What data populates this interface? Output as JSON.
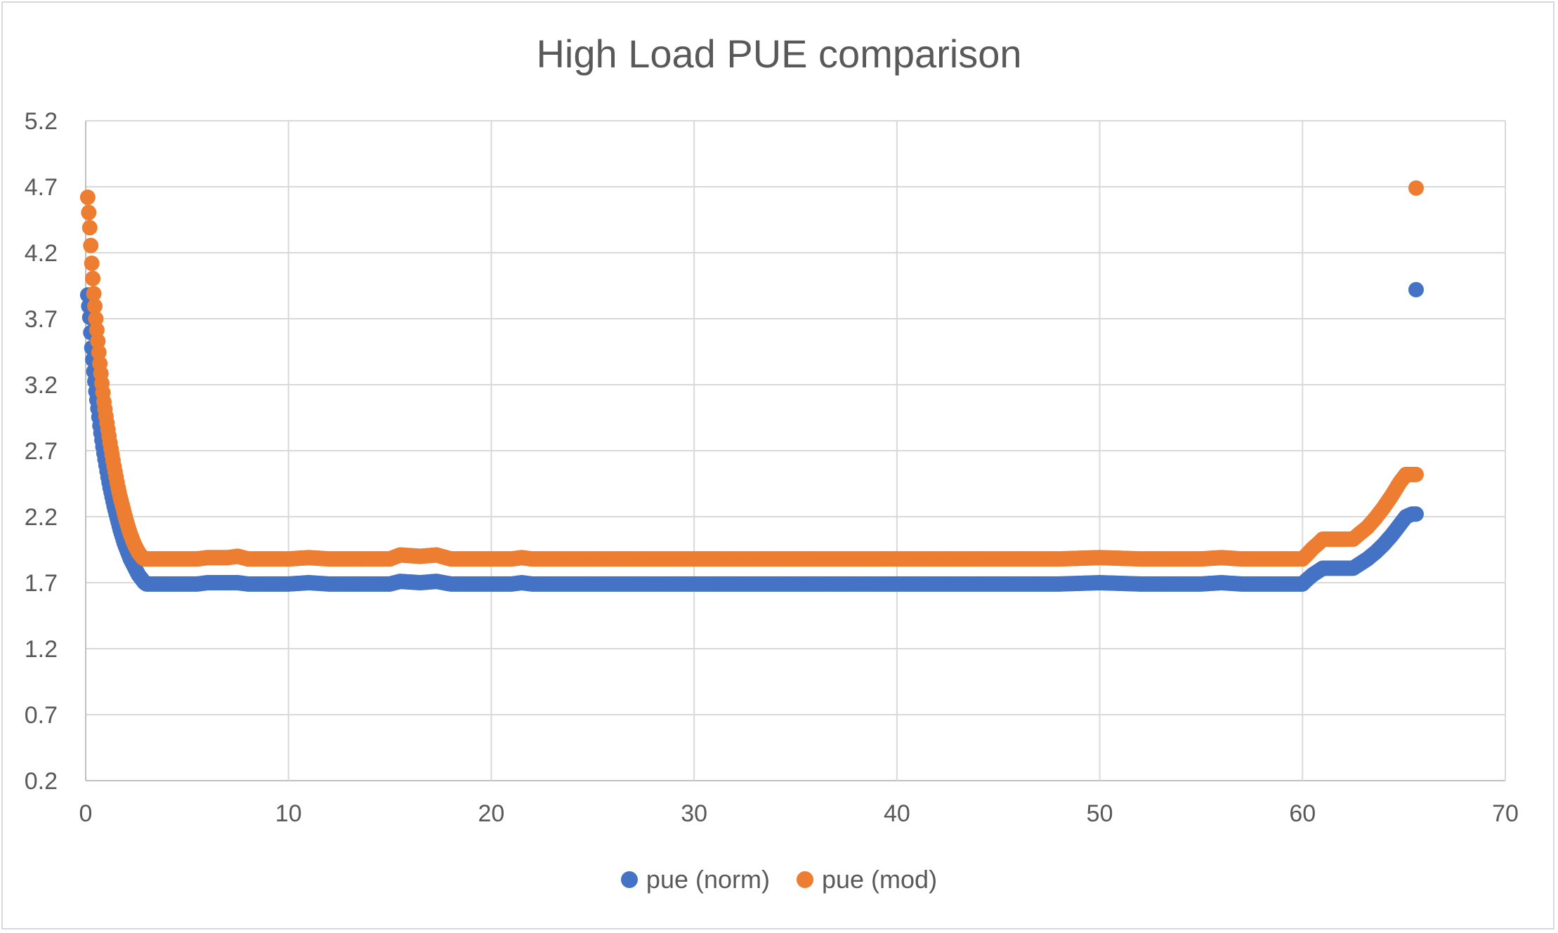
{
  "chart_data": {
    "type": "scatter",
    "title": "High Load PUE comparison",
    "xlabel": "",
    "ylabel": "",
    "xlim": [
      0,
      70
    ],
    "ylim": [
      0.2,
      5.2
    ],
    "x_ticks": [
      "0",
      "10",
      "20",
      "30",
      "40",
      "50",
      "60",
      "70"
    ],
    "y_ticks": [
      "0.2",
      "0.7",
      "1.2",
      "1.7",
      "2.2",
      "2.7",
      "3.2",
      "3.7",
      "4.2",
      "4.7",
      "5.2"
    ],
    "grid": true,
    "legend_position": "bottom",
    "series": [
      {
        "name": "pue (norm)",
        "color": "#4472c4",
        "points": [
          [
            0.1,
            3.88
          ],
          [
            0.2,
            3.71
          ],
          [
            0.3,
            3.48
          ],
          [
            0.4,
            3.3
          ],
          [
            0.5,
            3.15
          ],
          [
            0.6,
            3.02
          ],
          [
            0.7,
            2.89
          ],
          [
            0.8,
            2.78
          ],
          [
            0.9,
            2.68
          ],
          [
            1.0,
            2.59
          ],
          [
            1.1,
            2.5
          ],
          [
            1.2,
            2.42
          ],
          [
            1.3,
            2.35
          ],
          [
            1.4,
            2.28
          ],
          [
            1.5,
            2.22
          ],
          [
            1.6,
            2.16
          ],
          [
            1.7,
            2.1
          ],
          [
            1.8,
            2.05
          ],
          [
            1.9,
            2.0
          ],
          [
            2.0,
            1.96
          ],
          [
            2.1,
            1.92
          ],
          [
            2.2,
            1.88
          ],
          [
            2.3,
            1.85
          ],
          [
            2.4,
            1.82
          ],
          [
            2.5,
            1.79
          ],
          [
            2.6,
            1.76
          ],
          [
            2.7,
            1.74
          ],
          [
            2.8,
            1.72
          ],
          [
            2.9,
            1.7
          ],
          [
            3.0,
            1.69
          ],
          [
            3.5,
            1.69
          ],
          [
            4.0,
            1.69
          ],
          [
            5.0,
            1.69
          ],
          [
            5.5,
            1.69
          ],
          [
            6.0,
            1.7
          ],
          [
            7.0,
            1.7
          ],
          [
            7.5,
            1.7
          ],
          [
            8.0,
            1.69
          ],
          [
            9.0,
            1.69
          ],
          [
            10.0,
            1.69
          ],
          [
            11.0,
            1.7
          ],
          [
            12.0,
            1.69
          ],
          [
            13.0,
            1.69
          ],
          [
            14.0,
            1.69
          ],
          [
            15.0,
            1.69
          ],
          [
            15.5,
            1.71
          ],
          [
            16.5,
            1.7
          ],
          [
            17.3,
            1.71
          ],
          [
            18.0,
            1.69
          ],
          [
            19.0,
            1.69
          ],
          [
            20.0,
            1.69
          ],
          [
            21.0,
            1.69
          ],
          [
            21.5,
            1.7
          ],
          [
            22.0,
            1.69
          ],
          [
            25.0,
            1.69
          ],
          [
            28.0,
            1.69
          ],
          [
            30.0,
            1.69
          ],
          [
            33.0,
            1.69
          ],
          [
            36.0,
            1.69
          ],
          [
            40.0,
            1.69
          ],
          [
            43.0,
            1.69
          ],
          [
            45.0,
            1.69
          ],
          [
            48.0,
            1.69
          ],
          [
            50.0,
            1.7
          ],
          [
            52.0,
            1.69
          ],
          [
            55.0,
            1.69
          ],
          [
            56.0,
            1.7
          ],
          [
            57.0,
            1.69
          ],
          [
            59.0,
            1.69
          ],
          [
            60.0,
            1.69
          ],
          [
            60.2,
            1.72
          ],
          [
            60.5,
            1.76
          ],
          [
            60.8,
            1.79
          ],
          [
            61.0,
            1.81
          ],
          [
            62.0,
            1.81
          ],
          [
            62.5,
            1.81
          ],
          [
            62.8,
            1.84
          ],
          [
            63.2,
            1.88
          ],
          [
            63.6,
            1.93
          ],
          [
            64.0,
            1.99
          ],
          [
            64.4,
            2.06
          ],
          [
            64.8,
            2.14
          ],
          [
            65.1,
            2.2
          ],
          [
            65.4,
            2.22
          ],
          [
            65.6,
            2.22
          ],
          [
            65.6,
            3.92
          ]
        ]
      },
      {
        "name": "pue (mod)",
        "color": "#ed7d31",
        "points": [
          [
            0.1,
            4.62
          ],
          [
            0.2,
            4.39
          ],
          [
            0.3,
            4.12
          ],
          [
            0.4,
            3.89
          ],
          [
            0.5,
            3.7
          ],
          [
            0.6,
            3.53
          ],
          [
            0.7,
            3.36
          ],
          [
            0.8,
            3.21
          ],
          [
            0.9,
            3.07
          ],
          [
            1.0,
            2.96
          ],
          [
            1.1,
            2.86
          ],
          [
            1.2,
            2.76
          ],
          [
            1.3,
            2.67
          ],
          [
            1.4,
            2.58
          ],
          [
            1.5,
            2.5
          ],
          [
            1.6,
            2.42
          ],
          [
            1.7,
            2.35
          ],
          [
            1.8,
            2.29
          ],
          [
            1.9,
            2.23
          ],
          [
            2.0,
            2.17
          ],
          [
            2.1,
            2.12
          ],
          [
            2.2,
            2.07
          ],
          [
            2.3,
            2.03
          ],
          [
            2.4,
            1.99
          ],
          [
            2.5,
            1.96
          ],
          [
            2.6,
            1.93
          ],
          [
            2.7,
            1.91
          ],
          [
            2.8,
            1.89
          ],
          [
            2.9,
            1.88
          ],
          [
            3.0,
            1.88
          ],
          [
            3.5,
            1.88
          ],
          [
            4.0,
            1.88
          ],
          [
            5.0,
            1.88
          ],
          [
            5.5,
            1.88
          ],
          [
            6.0,
            1.89
          ],
          [
            7.0,
            1.89
          ],
          [
            7.5,
            1.9
          ],
          [
            8.0,
            1.88
          ],
          [
            9.0,
            1.88
          ],
          [
            10.0,
            1.88
          ],
          [
            11.0,
            1.89
          ],
          [
            12.0,
            1.88
          ],
          [
            13.0,
            1.88
          ],
          [
            14.0,
            1.88
          ],
          [
            15.0,
            1.88
          ],
          [
            15.5,
            1.91
          ],
          [
            16.5,
            1.9
          ],
          [
            17.3,
            1.91
          ],
          [
            18.0,
            1.88
          ],
          [
            19.0,
            1.88
          ],
          [
            20.0,
            1.88
          ],
          [
            21.0,
            1.88
          ],
          [
            21.5,
            1.89
          ],
          [
            22.0,
            1.88
          ],
          [
            25.0,
            1.88
          ],
          [
            28.0,
            1.88
          ],
          [
            30.0,
            1.88
          ],
          [
            33.0,
            1.88
          ],
          [
            36.0,
            1.88
          ],
          [
            40.0,
            1.88
          ],
          [
            43.0,
            1.88
          ],
          [
            45.0,
            1.88
          ],
          [
            48.0,
            1.88
          ],
          [
            50.0,
            1.89
          ],
          [
            52.0,
            1.88
          ],
          [
            55.0,
            1.88
          ],
          [
            56.0,
            1.89
          ],
          [
            57.0,
            1.88
          ],
          [
            59.0,
            1.88
          ],
          [
            60.0,
            1.88
          ],
          [
            60.2,
            1.91
          ],
          [
            60.5,
            1.96
          ],
          [
            60.8,
            2.0
          ],
          [
            61.0,
            2.03
          ],
          [
            62.0,
            2.03
          ],
          [
            62.5,
            2.03
          ],
          [
            62.8,
            2.07
          ],
          [
            63.2,
            2.12
          ],
          [
            63.6,
            2.19
          ],
          [
            64.0,
            2.27
          ],
          [
            64.4,
            2.36
          ],
          [
            64.8,
            2.46
          ],
          [
            65.1,
            2.52
          ],
          [
            65.4,
            2.52
          ],
          [
            65.6,
            2.52
          ],
          [
            65.6,
            4.69
          ]
        ]
      }
    ]
  },
  "legend": {
    "items": [
      {
        "label": "pue (norm)",
        "color": "#4472c4"
      },
      {
        "label": "pue (mod)",
        "color": "#ed7d31"
      }
    ]
  }
}
